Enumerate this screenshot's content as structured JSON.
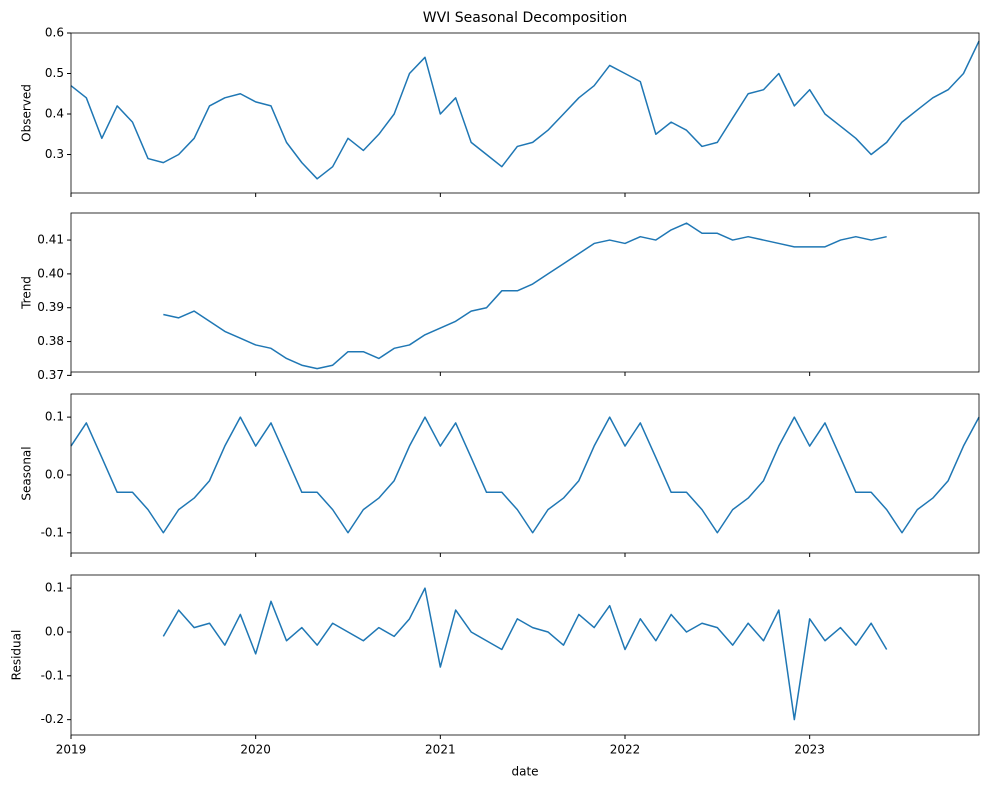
{
  "chart_data": [
    {
      "type": "line",
      "title": "WVI Seasonal Decomposition",
      "ylabel": "Observed",
      "color": "#1f77b4",
      "x": [
        2019,
        2019.083,
        2019.167,
        2019.25,
        2019.333,
        2019.417,
        2019.5,
        2019.583,
        2019.667,
        2019.75,
        2019.833,
        2019.917,
        2020,
        2020.083,
        2020.167,
        2020.25,
        2020.333,
        2020.417,
        2020.5,
        2020.583,
        2020.667,
        2020.75,
        2020.833,
        2020.917,
        2021,
        2021.083,
        2021.167,
        2021.25,
        2021.333,
        2021.417,
        2021.5,
        2021.583,
        2021.667,
        2021.75,
        2021.833,
        2021.917,
        2022,
        2022.083,
        2022.167,
        2022.25,
        2022.333,
        2022.417,
        2022.5,
        2022.583,
        2022.667,
        2022.75,
        2022.833,
        2022.917,
        2023,
        2023.083,
        2023.167,
        2023.25,
        2023.333,
        2023.417,
        2023.5,
        2023.583,
        2023.667,
        2023.75,
        2023.833,
        2023.917
      ],
      "values": [
        0.47,
        0.44,
        0.34,
        0.42,
        0.38,
        0.29,
        0.28,
        0.3,
        0.34,
        0.42,
        0.44,
        0.45,
        0.43,
        0.42,
        0.33,
        0.28,
        0.24,
        0.27,
        0.34,
        0.31,
        0.35,
        0.4,
        0.5,
        0.54,
        0.4,
        0.44,
        0.33,
        0.3,
        0.27,
        0.32,
        0.33,
        0.36,
        0.4,
        0.44,
        0.47,
        0.52,
        0.5,
        0.48,
        0.35,
        0.38,
        0.36,
        0.32,
        0.33,
        0.39,
        0.45,
        0.46,
        0.5,
        0.42,
        0.46,
        0.4,
        0.37,
        0.34,
        0.3,
        0.33,
        0.38,
        0.41,
        0.44,
        0.46,
        0.5,
        0.58
      ],
      "xlim": [
        2019,
        2023.917
      ],
      "ylim": [
        0.205,
        0.6
      ],
      "yticks": [
        0.3,
        0.4,
        0.5,
        0.6
      ]
    },
    {
      "type": "line",
      "ylabel": "Trend",
      "color": "#1f77b4",
      "x": [
        2019,
        2019.083,
        2019.167,
        2019.25,
        2019.333,
        2019.417,
        2019.5,
        2019.583,
        2019.667,
        2019.75,
        2019.833,
        2019.917,
        2020,
        2020.083,
        2020.167,
        2020.25,
        2020.333,
        2020.417,
        2020.5,
        2020.583,
        2020.667,
        2020.75,
        2020.833,
        2020.917,
        2021,
        2021.083,
        2021.167,
        2021.25,
        2021.333,
        2021.417,
        2021.5,
        2021.583,
        2021.667,
        2021.75,
        2021.833,
        2021.917,
        2022,
        2022.083,
        2022.167,
        2022.25,
        2022.333,
        2022.417,
        2022.5,
        2022.583,
        2022.667,
        2022.75,
        2022.833,
        2022.917,
        2023,
        2023.083,
        2023.167,
        2023.25,
        2023.333,
        2023.417,
        2023.5,
        2023.583,
        2023.667,
        2023.75,
        2023.833,
        2023.917
      ],
      "values": [
        null,
        null,
        null,
        null,
        null,
        null,
        0.388,
        0.387,
        0.389,
        0.386,
        0.383,
        0.381,
        0.379,
        0.378,
        0.375,
        0.373,
        0.372,
        0.373,
        0.377,
        0.377,
        0.375,
        0.378,
        0.379,
        0.382,
        0.384,
        0.386,
        0.389,
        0.39,
        0.395,
        0.395,
        0.397,
        0.4,
        0.403,
        0.406,
        0.409,
        0.41,
        0.409,
        0.411,
        0.41,
        0.413,
        0.415,
        0.412,
        0.412,
        0.41,
        0.411,
        0.41,
        0.409,
        0.408,
        0.408,
        0.408,
        0.41,
        0.411,
        0.41,
        0.411,
        null,
        null,
        null,
        null,
        null,
        null
      ],
      "xlim": [
        2019,
        2023.917
      ],
      "ylim": [
        0.371,
        0.418
      ],
      "yticks": [
        0.37,
        0.38,
        0.39,
        {
          "value": 0.4,
          "label": "0.40"
        },
        0.41
      ]
    },
    {
      "type": "line",
      "ylabel": "Seasonal",
      "color": "#1f77b4",
      "x": [
        2019,
        2019.083,
        2019.167,
        2019.25,
        2019.333,
        2019.417,
        2019.5,
        2019.583,
        2019.667,
        2019.75,
        2019.833,
        2019.917,
        2020,
        2020.083,
        2020.167,
        2020.25,
        2020.333,
        2020.417,
        2020.5,
        2020.583,
        2020.667,
        2020.75,
        2020.833,
        2020.917,
        2021,
        2021.083,
        2021.167,
        2021.25,
        2021.333,
        2021.417,
        2021.5,
        2021.583,
        2021.667,
        2021.75,
        2021.833,
        2021.917,
        2022,
        2022.083,
        2022.167,
        2022.25,
        2022.333,
        2022.417,
        2022.5,
        2022.583,
        2022.667,
        2022.75,
        2022.833,
        2022.917,
        2023,
        2023.083,
        2023.167,
        2023.25,
        2023.333,
        2023.417,
        2023.5,
        2023.583,
        2023.667,
        2023.75,
        2023.833,
        2023.917
      ],
      "values": [
        0.05,
        0.09,
        0.03,
        -0.03,
        -0.03,
        -0.06,
        -0.1,
        -0.06,
        -0.04,
        -0.01,
        0.05,
        0.1,
        0.05,
        0.09,
        0.03,
        -0.03,
        -0.03,
        -0.06,
        -0.1,
        -0.06,
        -0.04,
        -0.01,
        0.05,
        0.1,
        0.05,
        0.09,
        0.03,
        -0.03,
        -0.03,
        -0.06,
        -0.1,
        -0.06,
        -0.04,
        -0.01,
        0.05,
        0.1,
        0.05,
        0.09,
        0.03,
        -0.03,
        -0.03,
        -0.06,
        -0.1,
        -0.06,
        -0.04,
        -0.01,
        0.05,
        0.1,
        0.05,
        0.09,
        0.03,
        -0.03,
        -0.03,
        -0.06,
        -0.1,
        -0.06,
        -0.04,
        -0.01,
        0.05,
        0.1
      ],
      "xlim": [
        2019,
        2023.917
      ],
      "ylim": [
        -0.135,
        0.14
      ],
      "yticks": [
        -0.1,
        {
          "value": 0,
          "label": "0.0"
        },
        0.1
      ]
    },
    {
      "type": "line",
      "ylabel": "Residual",
      "xlabel": "date",
      "color": "#1f77b4",
      "x": [
        2019,
        2019.083,
        2019.167,
        2019.25,
        2019.333,
        2019.417,
        2019.5,
        2019.583,
        2019.667,
        2019.75,
        2019.833,
        2019.917,
        2020,
        2020.083,
        2020.167,
        2020.25,
        2020.333,
        2020.417,
        2020.5,
        2020.583,
        2020.667,
        2020.75,
        2020.833,
        2020.917,
        2021,
        2021.083,
        2021.167,
        2021.25,
        2021.333,
        2021.417,
        2021.5,
        2021.583,
        2021.667,
        2021.75,
        2021.833,
        2021.917,
        2022,
        2022.083,
        2022.167,
        2022.25,
        2022.333,
        2022.417,
        2022.5,
        2022.583,
        2022.667,
        2022.75,
        2022.833,
        2022.917,
        2023,
        2023.083,
        2023.167,
        2023.25,
        2023.333,
        2023.417,
        2023.5,
        2023.583,
        2023.667,
        2023.75,
        2023.833,
        2023.917
      ],
      "values": [
        null,
        null,
        null,
        null,
        null,
        null,
        -0.01,
        0.05,
        0.01,
        0.02,
        -0.03,
        0.04,
        -0.05,
        0.07,
        -0.02,
        0.01,
        -0.03,
        0.02,
        0.0,
        -0.02,
        0.01,
        -0.01,
        0.03,
        0.1,
        -0.08,
        0.05,
        0.0,
        -0.02,
        -0.04,
        0.03,
        0.01,
        0.0,
        -0.03,
        0.04,
        0.01,
        0.06,
        -0.04,
        0.03,
        -0.02,
        0.04,
        0.0,
        0.02,
        0.01,
        -0.03,
        0.02,
        -0.02,
        0.05,
        -0.2,
        0.03,
        -0.02,
        0.01,
        -0.03,
        0.02,
        -0.04,
        null,
        null,
        null,
        null,
        null,
        null
      ],
      "xlim": [
        2019,
        2023.917
      ],
      "ylim": [
        -0.235,
        0.13
      ],
      "yticks": [
        -0.2,
        -0.1,
        {
          "value": 0,
          "label": "0.0"
        },
        0.1
      ],
      "xticks": [
        2019,
        2020,
        2021,
        2022,
        2023
      ]
    }
  ]
}
